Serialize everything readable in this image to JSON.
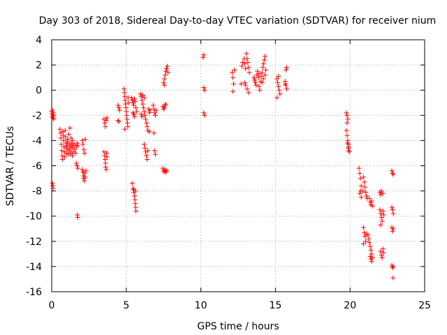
{
  "chart_data": {
    "type": "scatter",
    "title": "Day 303 of 2018, Sidereal Day-to-day VTEC variation (SDTVAR) for receiver nium",
    "xlabel": "GPS time / hours",
    "ylabel": "SDTVAR / TECUs",
    "xlim": [
      0,
      25
    ],
    "ylim": [
      -16,
      4
    ],
    "xticks": [
      0,
      5,
      10,
      15,
      20,
      25
    ],
    "yticks": [
      -16,
      -14,
      -12,
      -10,
      -8,
      -6,
      -4,
      -2,
      0,
      2,
      4
    ],
    "grid": true,
    "marker": "+",
    "color": "#ff0000",
    "series": [
      {
        "name": "SDTVAR",
        "points": [
          [
            0.0,
            -1.7
          ],
          [
            0.03,
            -1.9
          ],
          [
            0.05,
            -2.1
          ],
          [
            0.08,
            -2.2
          ],
          [
            0.1,
            -1.8
          ],
          [
            0.12,
            -2.0
          ],
          [
            0.14,
            -2.3
          ],
          [
            0.05,
            -1.6
          ],
          [
            0.05,
            -7.4
          ],
          [
            0.08,
            -7.6
          ],
          [
            0.1,
            -7.8
          ],
          [
            0.55,
            -3.1
          ],
          [
            0.6,
            -3.4
          ],
          [
            0.62,
            -3.8
          ],
          [
            0.65,
            -4.3
          ],
          [
            0.68,
            -4.8
          ],
          [
            0.7,
            -5.2
          ],
          [
            0.72,
            -5.5
          ],
          [
            0.75,
            -3.3
          ],
          [
            0.78,
            -3.6
          ],
          [
            0.8,
            -4.0
          ],
          [
            0.82,
            -4.5
          ],
          [
            0.85,
            -4.9
          ],
          [
            0.88,
            -5.3
          ],
          [
            0.9,
            -3.2
          ],
          [
            0.92,
            -3.7
          ],
          [
            0.95,
            -4.2
          ],
          [
            0.98,
            -4.6
          ],
          [
            1.0,
            -5.0
          ],
          [
            1.02,
            -4.4
          ],
          [
            1.05,
            -3.9
          ],
          [
            1.08,
            -4.1
          ],
          [
            1.1,
            -4.7
          ],
          [
            1.12,
            -5.1
          ],
          [
            1.15,
            -3.5
          ],
          [
            1.18,
            -4.3
          ],
          [
            1.2,
            -4.8
          ],
          [
            1.22,
            -3.0
          ],
          [
            1.25,
            -4.5
          ],
          [
            1.28,
            -5.0
          ],
          [
            1.3,
            -3.8
          ],
          [
            1.32,
            -4.2
          ],
          [
            1.35,
            -4.6
          ],
          [
            1.38,
            -5.2
          ],
          [
            1.4,
            -4.0
          ],
          [
            1.42,
            -4.4
          ],
          [
            1.45,
            -4.9
          ],
          [
            1.5,
            -4.3
          ],
          [
            1.55,
            -4.7
          ],
          [
            1.6,
            -5.0
          ],
          [
            1.65,
            -4.5
          ],
          [
            1.7,
            -4.2
          ],
          [
            1.75,
            -4.4
          ],
          [
            1.65,
            -5.8
          ],
          [
            1.7,
            -6.0
          ],
          [
            1.75,
            -6.2
          ],
          [
            1.72,
            -9.9
          ],
          [
            1.75,
            -10.1
          ],
          [
            2.05,
            -4.0
          ],
          [
            2.1,
            -4.3
          ],
          [
            2.15,
            -4.7
          ],
          [
            2.2,
            -5.0
          ],
          [
            2.25,
            -3.9
          ],
          [
            2.05,
            -6.3
          ],
          [
            2.1,
            -6.5
          ],
          [
            2.12,
            -6.8
          ],
          [
            2.15,
            -7.0
          ],
          [
            2.18,
            -7.2
          ],
          [
            2.2,
            -6.6
          ],
          [
            2.25,
            -6.9
          ],
          [
            2.3,
            -6.4
          ],
          [
            3.5,
            -2.3
          ],
          [
            3.55,
            -2.6
          ],
          [
            3.6,
            -2.9
          ],
          [
            3.65,
            -2.4
          ],
          [
            3.7,
            -2.2
          ],
          [
            3.5,
            -4.9
          ],
          [
            3.55,
            -5.2
          ],
          [
            3.58,
            -5.5
          ],
          [
            3.6,
            -5.8
          ],
          [
            3.62,
            -6.1
          ],
          [
            3.65,
            -6.3
          ],
          [
            3.68,
            -5.0
          ],
          [
            3.7,
            -5.3
          ],
          [
            4.45,
            -1.2
          ],
          [
            4.5,
            -1.4
          ],
          [
            4.55,
            -1.6
          ],
          [
            4.45,
            -2.4
          ],
          [
            4.5,
            -2.5
          ],
          [
            4.85,
            0.1
          ],
          [
            4.88,
            -0.2
          ],
          [
            4.9,
            -0.5
          ],
          [
            4.92,
            -0.8
          ],
          [
            4.95,
            -1.1
          ],
          [
            4.98,
            -1.4
          ],
          [
            5.0,
            -1.7
          ],
          [
            5.02,
            -2.0
          ],
          [
            5.05,
            -2.3
          ],
          [
            5.08,
            -2.6
          ],
          [
            5.1,
            -2.9
          ],
          [
            4.9,
            -3.1
          ],
          [
            5.12,
            -0.6
          ],
          [
            5.15,
            -1.0
          ],
          [
            5.35,
            -0.6
          ],
          [
            5.4,
            -0.8
          ],
          [
            5.45,
            -1.0
          ],
          [
            5.5,
            -1.2
          ],
          [
            5.55,
            -0.7
          ],
          [
            5.6,
            -0.9
          ],
          [
            5.65,
            -1.4
          ],
          [
            5.7,
            -1.7
          ],
          [
            5.5,
            -1.9
          ],
          [
            5.55,
            -2.1
          ],
          [
            5.45,
            -1.8
          ],
          [
            5.4,
            -7.4
          ],
          [
            5.45,
            -7.8
          ],
          [
            5.5,
            -8.1
          ],
          [
            5.55,
            -8.4
          ],
          [
            5.58,
            -8.7
          ],
          [
            5.6,
            -9.0
          ],
          [
            5.62,
            -9.3
          ],
          [
            5.65,
            -9.6
          ],
          [
            5.5,
            -7.9
          ],
          [
            5.6,
            -8.0
          ],
          [
            5.95,
            -0.3
          ],
          [
            6.0,
            -0.5
          ],
          [
            6.05,
            -0.8
          ],
          [
            6.1,
            -1.1
          ],
          [
            6.15,
            -1.4
          ],
          [
            6.2,
            -1.7
          ],
          [
            6.25,
            -2.0
          ],
          [
            6.3,
            -2.3
          ],
          [
            6.35,
            -2.6
          ],
          [
            6.4,
            -2.9
          ],
          [
            6.45,
            -3.2
          ],
          [
            6.1,
            -0.4
          ],
          [
            6.2,
            -0.6
          ],
          [
            6.0,
            -1.9
          ],
          [
            6.05,
            -2.1
          ],
          [
            6.2,
            -4.3
          ],
          [
            6.25,
            -4.6
          ],
          [
            6.3,
            -4.9
          ],
          [
            6.35,
            -5.2
          ],
          [
            6.4,
            -5.5
          ],
          [
            6.45,
            -4.8
          ],
          [
            6.5,
            -1.5
          ],
          [
            6.55,
            -1.8
          ],
          [
            6.6,
            -1.6
          ],
          [
            6.55,
            -3.3
          ],
          [
            6.8,
            -1.2
          ],
          [
            6.85,
            -1.5
          ],
          [
            6.9,
            -1.8
          ],
          [
            6.95,
            -2.0
          ],
          [
            7.0,
            -1.6
          ],
          [
            6.85,
            -3.4
          ],
          [
            6.9,
            -4.8
          ],
          [
            6.95,
            -5.1
          ],
          [
            7.5,
            0.6
          ],
          [
            7.55,
            0.9
          ],
          [
            7.6,
            1.2
          ],
          [
            7.65,
            1.5
          ],
          [
            7.7,
            1.7
          ],
          [
            7.75,
            1.9
          ],
          [
            7.8,
            1.4
          ],
          [
            7.55,
            0.4
          ],
          [
            7.45,
            -1.3
          ],
          [
            7.5,
            -1.5
          ],
          [
            7.55,
            -1.4
          ],
          [
            7.6,
            -1.2
          ],
          [
            7.65,
            -1.1
          ],
          [
            7.45,
            -6.2
          ],
          [
            7.5,
            -6.4
          ],
          [
            7.55,
            -6.5
          ],
          [
            7.6,
            -6.3
          ],
          [
            7.65,
            -6.5
          ],
          [
            7.7,
            -6.4
          ],
          [
            10.15,
            2.6
          ],
          [
            10.2,
            2.8
          ],
          [
            10.2,
            0.2
          ],
          [
            10.25,
            0.0
          ],
          [
            10.2,
            -1.8
          ],
          [
            10.25,
            -2.0
          ],
          [
            12.1,
            1.4
          ],
          [
            12.15,
            1.0
          ],
          [
            12.2,
            0.5
          ],
          [
            12.15,
            -0.1
          ],
          [
            12.25,
            1.6
          ],
          [
            12.7,
            0.5
          ],
          [
            12.75,
            1.9
          ],
          [
            12.8,
            2.2
          ],
          [
            12.9,
            2.5
          ],
          [
            12.95,
            2.1
          ],
          [
            13.0,
            1.7
          ],
          [
            13.05,
            2.9
          ],
          [
            13.1,
            2.5
          ],
          [
            13.15,
            2.2
          ],
          [
            13.2,
            1.8
          ],
          [
            13.25,
            1.4
          ],
          [
            13.0,
            0.4
          ],
          [
            13.1,
            0.1
          ],
          [
            13.2,
            -0.2
          ],
          [
            12.95,
            0.6
          ],
          [
            13.55,
            1.0
          ],
          [
            13.6,
            0.8
          ],
          [
            13.65,
            0.6
          ],
          [
            13.7,
            0.4
          ],
          [
            13.75,
            1.2
          ],
          [
            13.8,
            1.5
          ],
          [
            13.85,
            1.0
          ],
          [
            13.9,
            0.3
          ],
          [
            13.95,
            0.0
          ],
          [
            14.0,
            0.7
          ],
          [
            14.05,
            1.1
          ],
          [
            14.1,
            1.4
          ],
          [
            14.15,
            1.8
          ],
          [
            14.2,
            2.1
          ],
          [
            14.25,
            2.4
          ],
          [
            14.3,
            2.7
          ],
          [
            14.1,
            0.6
          ],
          [
            14.2,
            0.9
          ],
          [
            14.3,
            1.2
          ],
          [
            14.35,
            1.6
          ],
          [
            13.9,
            1.3
          ],
          [
            15.1,
            0.9
          ],
          [
            15.15,
            0.6
          ],
          [
            15.2,
            0.3
          ],
          [
            15.25,
            0.0
          ],
          [
            15.3,
            -0.3
          ],
          [
            15.2,
            1.1
          ],
          [
            15.1,
            -0.6
          ],
          [
            15.65,
            0.7
          ],
          [
            15.7,
            0.4
          ],
          [
            15.75,
            0.1
          ],
          [
            15.7,
            1.6
          ],
          [
            15.75,
            1.8
          ],
          [
            15.65,
            0.5
          ],
          [
            19.75,
            -1.8
          ],
          [
            19.8,
            -2.0
          ],
          [
            19.85,
            -2.3
          ],
          [
            19.8,
            -2.6
          ],
          [
            19.75,
            -3.2
          ],
          [
            19.8,
            -3.6
          ],
          [
            19.85,
            -4.0
          ],
          [
            19.9,
            -4.3
          ],
          [
            19.88,
            -4.6
          ],
          [
            19.92,
            -4.8
          ],
          [
            19.82,
            -4.2
          ],
          [
            19.9,
            -4.5
          ],
          [
            19.95,
            -4.9
          ],
          [
            20.6,
            -6.2
          ],
          [
            20.65,
            -6.6
          ],
          [
            20.7,
            -7.0
          ],
          [
            20.75,
            -7.6
          ],
          [
            20.7,
            -8.0
          ],
          [
            20.75,
            -8.5
          ],
          [
            20.65,
            -8.2
          ],
          [
            20.9,
            -6.9
          ],
          [
            20.95,
            -7.3
          ],
          [
            21.0,
            -7.7
          ],
          [
            21.05,
            -8.1
          ],
          [
            21.1,
            -8.4
          ],
          [
            21.15,
            -8.6
          ],
          [
            20.85,
            -8.0
          ],
          [
            20.9,
            -10.9
          ],
          [
            20.95,
            -11.3
          ],
          [
            21.0,
            -11.6
          ],
          [
            21.05,
            -12.0
          ],
          [
            20.9,
            -12.2
          ],
          [
            21.1,
            -11.4
          ],
          [
            21.2,
            -11.5
          ],
          [
            21.25,
            -11.8
          ],
          [
            21.3,
            -12.1
          ],
          [
            21.35,
            -12.4
          ],
          [
            21.4,
            -12.7
          ],
          [
            21.45,
            -13.0
          ],
          [
            21.5,
            -13.3
          ],
          [
            21.3,
            -8.6
          ],
          [
            21.35,
            -8.9
          ],
          [
            21.4,
            -9.1
          ],
          [
            21.45,
            -8.8
          ],
          [
            21.5,
            -9.2
          ],
          [
            21.4,
            -13.4
          ],
          [
            21.45,
            -13.6
          ],
          [
            21.35,
            -13.2
          ],
          [
            22.0,
            -9.5
          ],
          [
            22.05,
            -9.8
          ],
          [
            22.1,
            -10.1
          ],
          [
            22.15,
            -10.4
          ],
          [
            22.2,
            -9.6
          ],
          [
            22.25,
            -9.9
          ],
          [
            22.05,
            -10.7
          ],
          [
            22.0,
            -8.1
          ],
          [
            22.05,
            -8.3
          ],
          [
            22.1,
            -8.0
          ],
          [
            22.2,
            -8.2
          ],
          [
            22.05,
            -12.8
          ],
          [
            22.1,
            -13.1
          ],
          [
            22.15,
            -13.3
          ],
          [
            22.2,
            -12.6
          ],
          [
            22.25,
            -12.9
          ],
          [
            22.8,
            -6.4
          ],
          [
            22.85,
            -6.6
          ],
          [
            22.9,
            -6.7
          ],
          [
            22.8,
            -9.3
          ],
          [
            22.85,
            -9.5
          ],
          [
            22.9,
            -9.8
          ],
          [
            22.8,
            -10.9
          ],
          [
            22.85,
            -11.2
          ],
          [
            22.9,
            -11.0
          ],
          [
            22.8,
            -13.9
          ],
          [
            22.85,
            -14.1
          ],
          [
            22.9,
            -14.0
          ],
          [
            22.88,
            -14.9
          ]
        ]
      }
    ]
  }
}
